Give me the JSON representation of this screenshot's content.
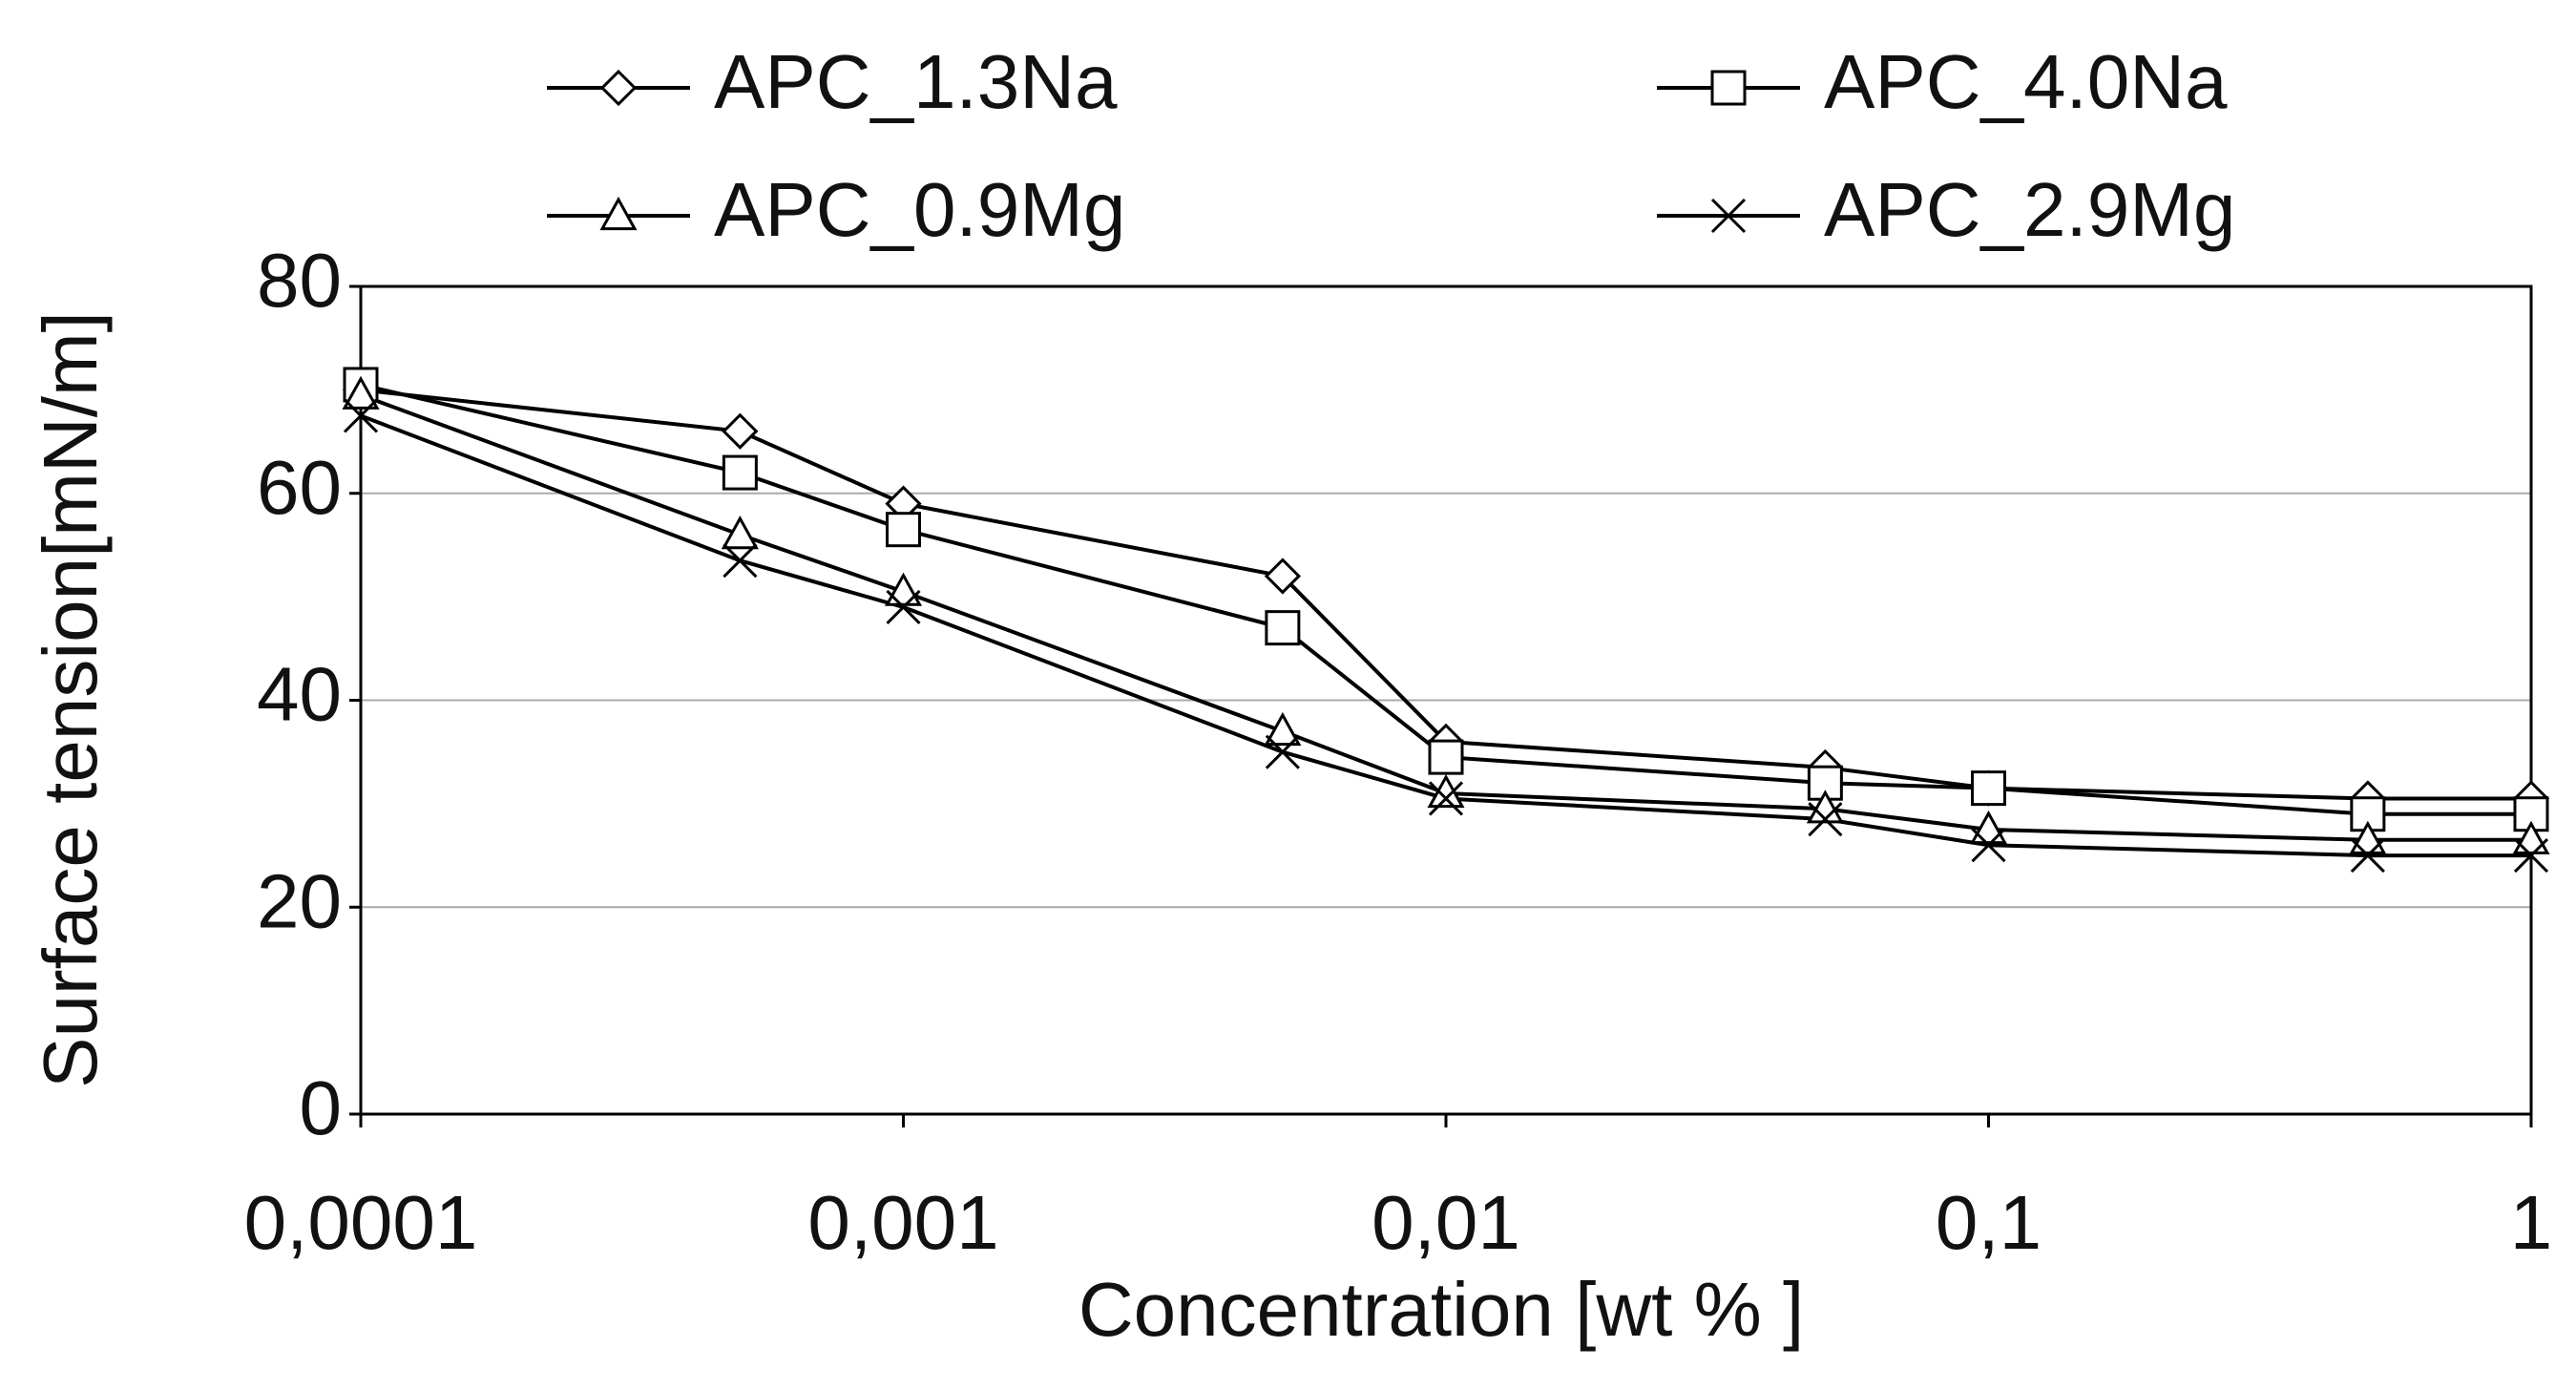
{
  "chart_data": {
    "type": "line",
    "xlabel": "Concentration [wt % ]",
    "ylabel": "Surface tension[mN/m]",
    "x": [
      0.0001,
      0.0005,
      0.001,
      0.005,
      0.01,
      0.05,
      0.1,
      0.5,
      1
    ],
    "xscale": "log",
    "xlim": [
      0.0001,
      1
    ],
    "xticks": [
      {
        "value": 0.0001,
        "label": "0,0001"
      },
      {
        "value": 0.001,
        "label": "0,001"
      },
      {
        "value": 0.01,
        "label": "0,01"
      },
      {
        "value": 0.1,
        "label": "0,1"
      },
      1
    ],
    "ylim": [
      0,
      80
    ],
    "yticks": [
      0,
      20,
      40,
      60,
      80
    ],
    "grid": true,
    "legend": "top",
    "series": [
      {
        "name": "APC_1.3Na",
        "color": "#000000",
        "marker": "diamond",
        "values": [
          70,
          66,
          59,
          52,
          36,
          33.5,
          31.5,
          30.5,
          30.5
        ]
      },
      {
        "name": "APC_4.0Na",
        "color": "#000000",
        "marker": "square",
        "values": [
          70.5,
          62,
          56.5,
          47,
          34.5,
          32,
          31.5,
          29,
          29
        ]
      },
      {
        "name": "APC_0.9Mg",
        "color": "#000000",
        "marker": "triangle",
        "values": [
          69.5,
          56,
          50.5,
          37,
          31,
          29.5,
          27.5,
          26.5,
          26.5
        ]
      },
      {
        "name": "APC_2.9Mg",
        "color": "#000000",
        "marker": "x",
        "values": [
          67.5,
          53.5,
          49,
          35,
          30.5,
          28.5,
          26,
          25,
          25
        ]
      }
    ]
  }
}
